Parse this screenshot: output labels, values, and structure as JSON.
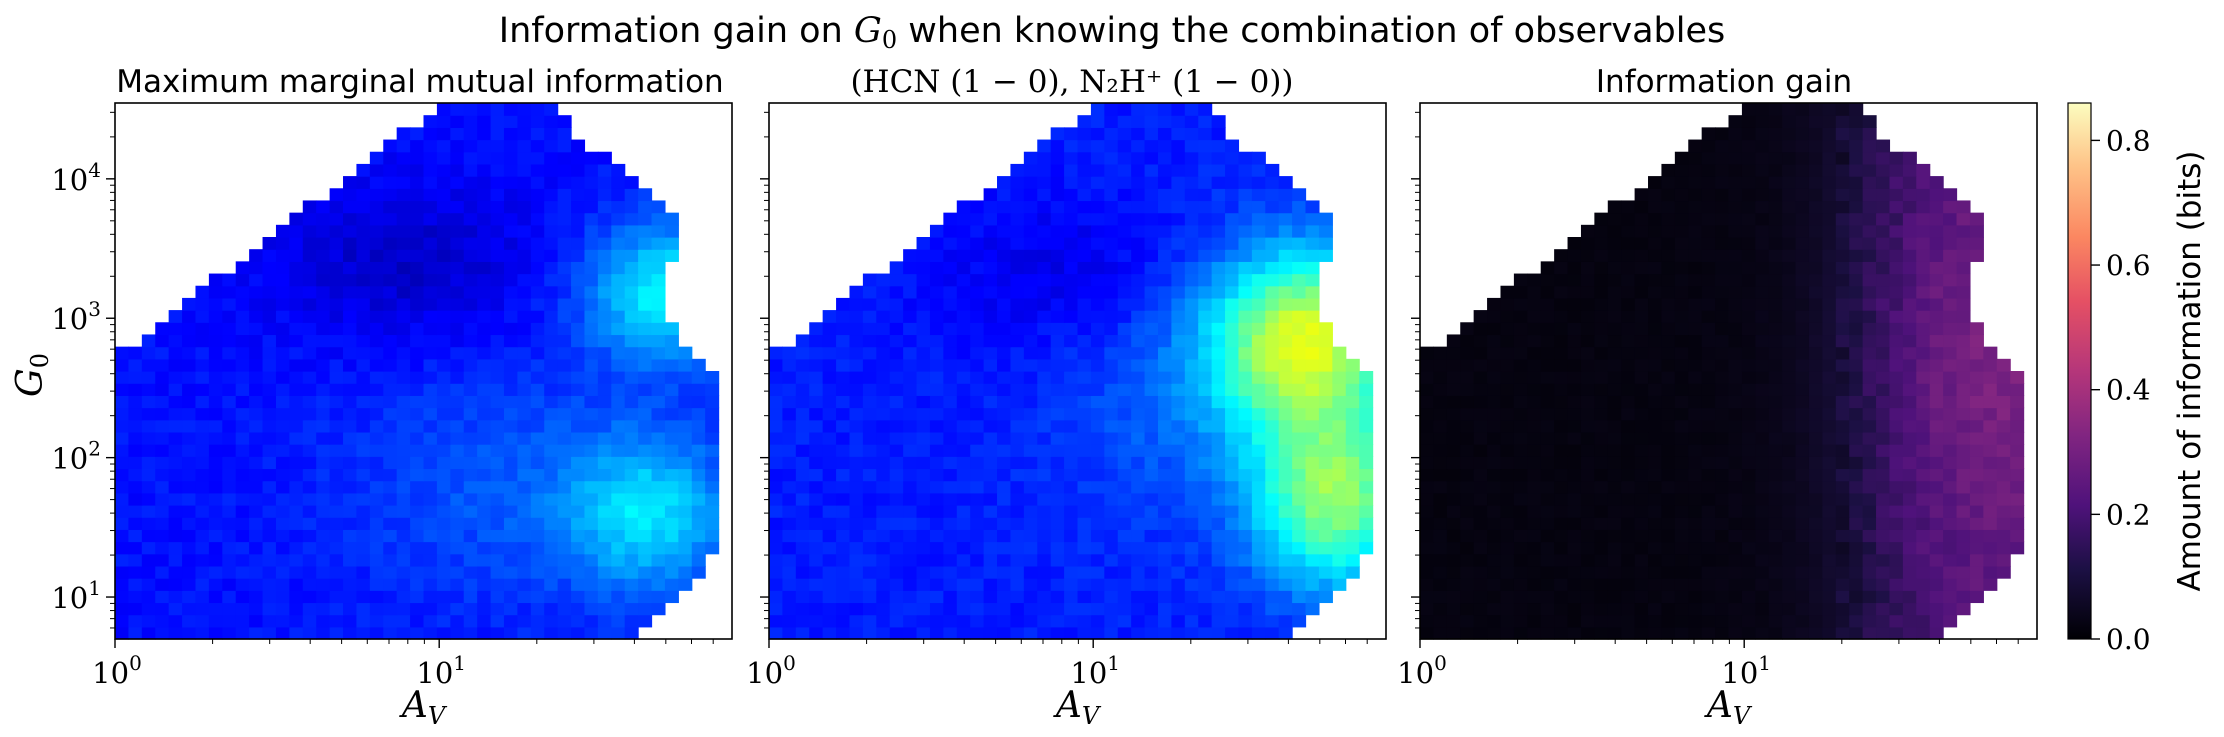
{
  "figure": {
    "suptitle_text": "Information gain on ",
    "suptitle_var": "G",
    "suptitle_sub": "0",
    "suptitle_tail": " when knowing the combination of observables"
  },
  "panels": [
    {
      "title": "Maximum marginal mutual information",
      "colormap": "jet"
    },
    {
      "title": "(HCN (1 − 0), N₂H⁺ (1 − 0))",
      "colormap": "jet"
    },
    {
      "title": "Information gain",
      "colormap": "magma"
    }
  ],
  "axes": {
    "xlabel_main": "A",
    "xlabel_sub": "V",
    "ylabel_main": "G",
    "ylabel_sub": "0",
    "x_ticks": [
      {
        "base": "10",
        "exp": "0"
      },
      {
        "base": "10",
        "exp": "1"
      }
    ],
    "y_ticks": [
      {
        "base": "10",
        "exp": "1"
      },
      {
        "base": "10",
        "exp": "2"
      },
      {
        "base": "10",
        "exp": "3"
      },
      {
        "base": "10",
        "exp": "4"
      }
    ]
  },
  "colorbar": {
    "label": "Amount of information (bits)",
    "ticks": [
      "0.0",
      "0.2",
      "0.4",
      "0.6",
      "0.8"
    ]
  },
  "chart_data": [
    {
      "type": "heatmap",
      "title": "Maximum marginal mutual information",
      "xlabel": "A_V",
      "ylabel": "G_0",
      "xscale": "log",
      "yscale": "log",
      "xlim": [
        1,
        80
      ],
      "ylim": [
        5,
        35000
      ],
      "colormap": "jet",
      "vmin": 0,
      "vmax": 0.86,
      "value_range_description": "mostly 0.0–0.3; max ≈0.45 near A_V≈50, G_0≈1500"
    },
    {
      "type": "heatmap",
      "title": "(HCN (1 − 0), N₂H⁺ (1 − 0))",
      "xlabel": "A_V",
      "ylabel": "G_0",
      "xscale": "log",
      "yscale": "log",
      "xlim": [
        1,
        80
      ],
      "ylim": [
        5,
        35000
      ],
      "colormap": "jet",
      "vmin": 0,
      "vmax": 0.86,
      "value_range_description": "mostly 0.05–0.35; max ≈0.55 near A_V≈40–70, G_0≈50–1000"
    },
    {
      "type": "heatmap",
      "title": "Information gain",
      "xlabel": "A_V",
      "ylabel": "",
      "xscale": "log",
      "yscale": "log",
      "xlim": [
        1,
        80
      ],
      "ylim": [
        5,
        35000
      ],
      "colormap": "magma",
      "vmin": 0,
      "vmax": 0.86,
      "value_range_description": "≈0 for A_V<15; rises to ≈0.3–0.4 for A_V≈40–80"
    }
  ]
}
